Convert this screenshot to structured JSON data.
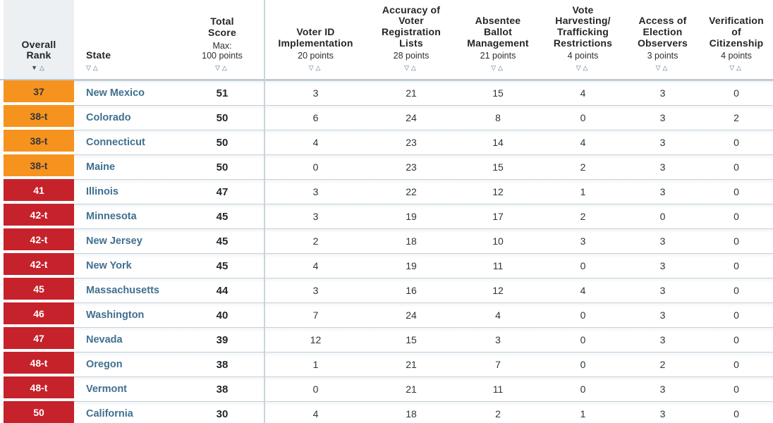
{
  "colors": {
    "orange": "#f6921e",
    "red": "#c6222b",
    "state_link": "#40708f",
    "header_bg": "#edf0f3"
  },
  "table": {
    "columns": [
      {
        "id": "rank",
        "title": "Overall\nRank",
        "sort_desc": "▼",
        "sort_asc": "△"
      },
      {
        "id": "state",
        "title": "State",
        "sort_desc": "▽",
        "sort_asc": "△"
      },
      {
        "id": "total",
        "title": "Total\nScore",
        "subtitle": "Max:\n100 points",
        "sort_desc": "▽",
        "sort_asc": "△"
      },
      {
        "id": "voter_id",
        "title": "Voter ID\nImplementation",
        "subtitle": "20 points",
        "sort_desc": "▽",
        "sort_asc": "△"
      },
      {
        "id": "accuracy",
        "title": "Accuracy of\nVoter\nRegistration\nLists",
        "subtitle": "28 points",
        "sort_desc": "▽",
        "sort_asc": "△"
      },
      {
        "id": "absentee",
        "title": "Absentee\nBallot\nManagement",
        "subtitle": "21 points",
        "sort_desc": "▽",
        "sort_asc": "△"
      },
      {
        "id": "harvesting",
        "title": "Vote\nHarvesting/\nTrafficking\nRestrictions",
        "subtitle": "4 points",
        "sort_desc": "▽",
        "sort_asc": "△"
      },
      {
        "id": "observers",
        "title": "Access of\nElection\nObservers",
        "subtitle": "3 points",
        "sort_desc": "▽",
        "sort_asc": "△"
      },
      {
        "id": "citizenship",
        "title": "Verification\nof\nCitizenship",
        "subtitle": "4 points",
        "sort_desc": "▽",
        "sort_asc": "△"
      }
    ],
    "rows": [
      {
        "rank": "37",
        "tier": "orange",
        "state": "New Mexico",
        "total": "51",
        "scores": [
          "3",
          "21",
          "15",
          "4",
          "3",
          "0"
        ]
      },
      {
        "rank": "38-t",
        "tier": "orange",
        "state": "Colorado",
        "total": "50",
        "scores": [
          "6",
          "24",
          "8",
          "0",
          "3",
          "2"
        ]
      },
      {
        "rank": "38-t",
        "tier": "orange",
        "state": "Connecticut",
        "total": "50",
        "scores": [
          "4",
          "23",
          "14",
          "4",
          "3",
          "0"
        ]
      },
      {
        "rank": "38-t",
        "tier": "orange",
        "state": "Maine",
        "total": "50",
        "scores": [
          "0",
          "23",
          "15",
          "2",
          "3",
          "0"
        ]
      },
      {
        "rank": "41",
        "tier": "red",
        "state": "Illinois",
        "total": "47",
        "scores": [
          "3",
          "22",
          "12",
          "1",
          "3",
          "0"
        ]
      },
      {
        "rank": "42-t",
        "tier": "red",
        "state": "Minnesota",
        "total": "45",
        "scores": [
          "3",
          "19",
          "17",
          "2",
          "0",
          "0"
        ]
      },
      {
        "rank": "42-t",
        "tier": "red",
        "state": "New Jersey",
        "total": "45",
        "scores": [
          "2",
          "18",
          "10",
          "3",
          "3",
          "0"
        ]
      },
      {
        "rank": "42-t",
        "tier": "red",
        "state": "New York",
        "total": "45",
        "scores": [
          "4",
          "19",
          "11",
          "0",
          "3",
          "0"
        ]
      },
      {
        "rank": "45",
        "tier": "red",
        "state": "Massachusetts",
        "total": "44",
        "scores": [
          "3",
          "16",
          "12",
          "4",
          "3",
          "0"
        ]
      },
      {
        "rank": "46",
        "tier": "red",
        "state": "Washington",
        "total": "40",
        "scores": [
          "7",
          "24",
          "4",
          "0",
          "3",
          "0"
        ]
      },
      {
        "rank": "47",
        "tier": "red",
        "state": "Nevada",
        "total": "39",
        "scores": [
          "12",
          "15",
          "3",
          "0",
          "3",
          "0"
        ]
      },
      {
        "rank": "48-t",
        "tier": "red",
        "state": "Oregon",
        "total": "38",
        "scores": [
          "1",
          "21",
          "7",
          "0",
          "2",
          "0"
        ]
      },
      {
        "rank": "48-t",
        "tier": "red",
        "state": "Vermont",
        "total": "38",
        "scores": [
          "0",
          "21",
          "11",
          "0",
          "3",
          "0"
        ]
      },
      {
        "rank": "50",
        "tier": "red",
        "state": "California",
        "total": "30",
        "scores": [
          "4",
          "18",
          "2",
          "1",
          "3",
          "0"
        ]
      }
    ]
  }
}
